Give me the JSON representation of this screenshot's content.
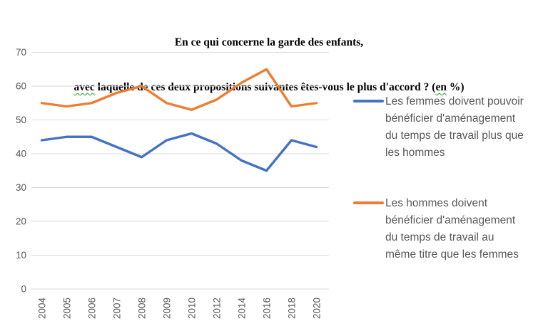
{
  "title": {
    "line1": "En ce qui concerne la garde des enfants,",
    "line2_segments": [
      {
        "text": "avec",
        "spellcheck_underline": true
      },
      {
        "text": " laquelle de ces deux propositions suivantes êtes-vous le plus d'accord ? (",
        "spellcheck_underline": false
      },
      {
        "text": "en",
        "spellcheck_underline": true
      },
      {
        "text": " %)",
        "spellcheck_underline": false
      }
    ]
  },
  "chart_data": {
    "type": "line",
    "categories": [
      "2004",
      "2005",
      "2006",
      "2007",
      "2008",
      "2009",
      "2010",
      "2012",
      "2014",
      "2016",
      "2018",
      "2020"
    ],
    "series": [
      {
        "name": "Les femmes doivent pouvoir bénéficier d'aménagement du temps de travail plus que les hommes",
        "color": "#4472C4",
        "values": [
          44,
          45,
          45,
          42,
          39,
          44,
          46,
          43,
          38,
          35,
          44,
          42
        ]
      },
      {
        "name": "Les hommes doivent bénéficier d'aménagement du temps de travail au même titre que les femmes",
        "color": "#ED7D31",
        "values": [
          55,
          54,
          55,
          58,
          60,
          55,
          53,
          56,
          61,
          65,
          54,
          55
        ]
      }
    ],
    "title": "En ce qui concerne la garde des enfants, avec laquelle de ces deux propositions suivantes êtes-vous le plus d'accord ? (en %)",
    "xlabel": "",
    "ylabel": "",
    "ylim": [
      0,
      70
    ],
    "ytick_step": 10,
    "yticks": [
      "0",
      "10",
      "20",
      "30",
      "40",
      "50",
      "60",
      "70"
    ],
    "grid": true,
    "legend_position": "right"
  },
  "legend": {
    "items": [
      {
        "color": "#4472C4",
        "label_lines": [
          "Les femmes doivent pouvoir",
          "bénéficier d'aménagement",
          "du temps de travail plus que",
          "les hommes"
        ]
      },
      {
        "color": "#ED7D31",
        "label_lines": [
          "Les hommes doivent",
          "bénéficier d'aménagement",
          "du temps de travail au",
          "même titre que les femmes"
        ]
      }
    ]
  },
  "colors": {
    "series_blue": "#4472C4",
    "series_orange": "#ED7D31",
    "gridline": "#D9D9D9",
    "axis_text": "#595959",
    "legend_text": "#595959",
    "title_text": "#000000",
    "spellcheck_green": "#18A018"
  }
}
